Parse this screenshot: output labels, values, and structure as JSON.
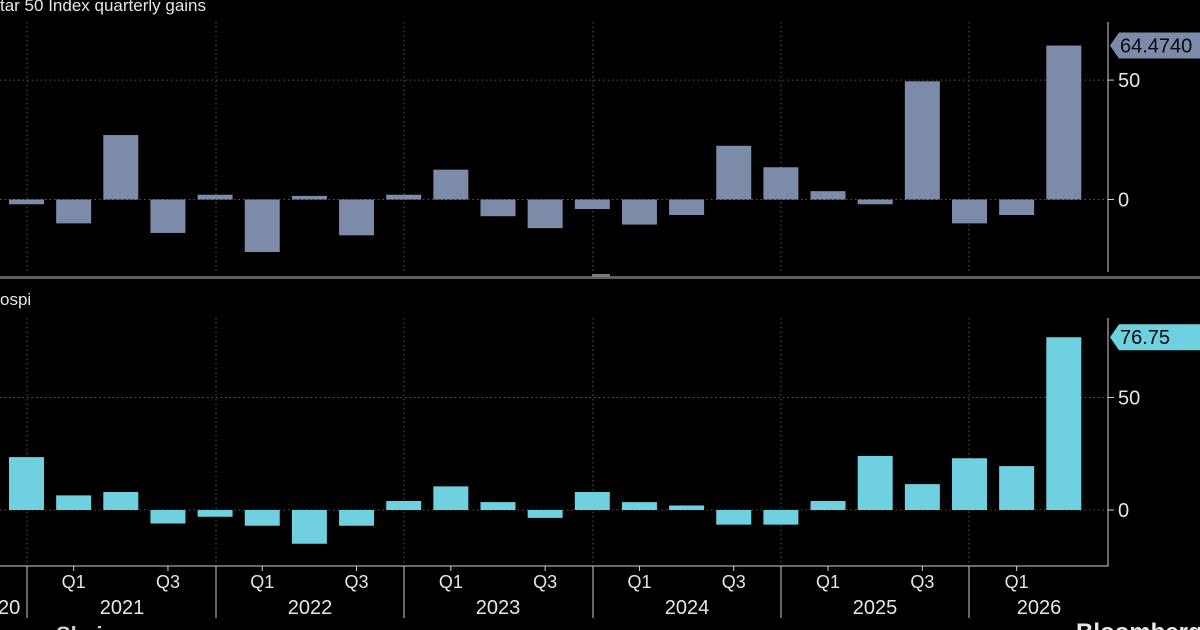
{
  "chart_data": [
    {
      "type": "bar",
      "title": "tar 50 Index quarterly gains",
      "categories": [
        "2020Q4",
        "2021Q1",
        "2021Q2",
        "2021Q3",
        "2021Q4",
        "2022Q1",
        "2022Q2",
        "2022Q3",
        "2022Q4",
        "2023Q1",
        "2023Q2",
        "2023Q3",
        "2023Q4",
        "2024Q1",
        "2024Q2",
        "2024Q3",
        "2024Q4",
        "2025Q1",
        "2025Q2",
        "2025Q3",
        "2025Q4",
        "2026Q1",
        "2026Q2"
      ],
      "values": [
        -2,
        -10,
        27,
        -14,
        2,
        -22,
        1.5,
        -15,
        2,
        12.5,
        -7,
        -12,
        -4,
        -10.5,
        -6.5,
        22.5,
        13.5,
        3.5,
        -2,
        49.5,
        -10,
        -6.5,
        64.474
      ],
      "ylim": [
        -30,
        67
      ],
      "yticks": [
        0,
        50
      ],
      "last_value_label": "64.4740",
      "bar_color": "#7b8ba8",
      "grid": true
    },
    {
      "type": "bar",
      "title": "ospi",
      "categories": [
        "2020Q4",
        "2021Q1",
        "2021Q2",
        "2021Q3",
        "2021Q4",
        "2022Q1",
        "2022Q2",
        "2022Q3",
        "2022Q4",
        "2023Q1",
        "2023Q2",
        "2023Q3",
        "2023Q4",
        "2024Q1",
        "2024Q2",
        "2024Q3",
        "2024Q4",
        "2025Q1",
        "2025Q2",
        "2025Q3",
        "2025Q4",
        "2026Q1",
        "2026Q2"
      ],
      "values": [
        23.5,
        6.5,
        8,
        -6,
        -3,
        -7,
        -15,
        -7,
        4,
        10.5,
        3.5,
        -3.5,
        8,
        3.5,
        2,
        -6.5,
        -6.5,
        4,
        24,
        11.5,
        23,
        19.5,
        76.75
      ],
      "ylim": [
        -23,
        80
      ],
      "yticks": [
        0,
        50
      ],
      "last_value_label": "76.75",
      "bar_color": "#6fd0e0",
      "grid": true
    }
  ],
  "x_axis": {
    "quarter_labels": [
      {
        "label": "Q1",
        "year": "2021",
        "q": 1
      },
      {
        "label": "Q3",
        "year": "2021",
        "q": 3
      },
      {
        "label": "Q1",
        "year": "2022",
        "q": 1
      },
      {
        "label": "Q3",
        "year": "2022",
        "q": 3
      },
      {
        "label": "Q1",
        "year": "2023",
        "q": 1
      },
      {
        "label": "Q3",
        "year": "2023",
        "q": 3
      },
      {
        "label": "Q1",
        "year": "2024",
        "q": 1
      },
      {
        "label": "Q3",
        "year": "2024",
        "q": 3
      },
      {
        "label": "Q1",
        "year": "2025",
        "q": 1
      },
      {
        "label": "Q3",
        "year": "2025",
        "q": 3
      },
      {
        "label": "Q1",
        "year": "2026",
        "q": 1
      }
    ],
    "years": [
      "20",
      "2021",
      "2022",
      "2023",
      "2024",
      "2025",
      "2026"
    ]
  },
  "footer": {
    "source_fragment": "Sbain",
    "brand_fragment": "Bloomberg"
  }
}
